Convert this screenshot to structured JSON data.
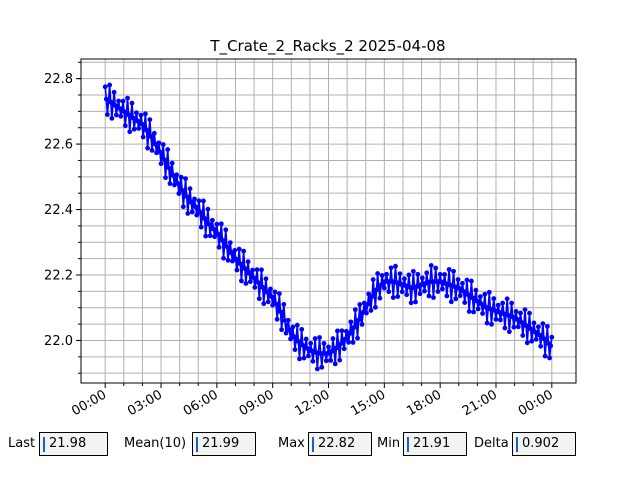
{
  "chart_data": {
    "type": "line",
    "title": "T_Crate_2_Racks_2 2025-04-08",
    "xlabel": "",
    "ylabel": "",
    "x_ticks": [
      "00:00",
      "03:00",
      "06:00",
      "09:00",
      "12:00",
      "15:00",
      "18:00",
      "21:00",
      "00:00"
    ],
    "y_ticks": [
      "22.0",
      "22.2",
      "22.4",
      "22.6",
      "22.8"
    ],
    "xlim_hours": [
      -1.3,
      25.3
    ],
    "ylim": [
      21.87,
      22.86
    ],
    "grid": true,
    "series": [
      {
        "color": "#0000ff",
        "marker": "circle",
        "x_hours": [
          0.0,
          0.5,
          1.0,
          1.5,
          2.0,
          2.5,
          3.0,
          3.5,
          4.0,
          4.5,
          5.0,
          5.5,
          6.0,
          6.5,
          7.0,
          7.5,
          8.0,
          8.5,
          9.0,
          9.5,
          10.0,
          10.5,
          11.0,
          11.5,
          12.0,
          12.5,
          13.0,
          13.5,
          14.0,
          14.5,
          15.0,
          15.5,
          16.0,
          16.5,
          17.0,
          17.5,
          18.0,
          18.5,
          19.0,
          19.5,
          20.0,
          20.5,
          21.0,
          21.5,
          22.0,
          22.5,
          23.0,
          23.5,
          24.0
        ],
        "y_base": [
          22.74,
          22.72,
          22.7,
          22.68,
          22.66,
          22.62,
          22.57,
          22.52,
          22.47,
          22.43,
          22.4,
          22.36,
          22.33,
          22.29,
          22.25,
          22.22,
          22.19,
          22.16,
          22.13,
          22.08,
          22.02,
          21.99,
          21.97,
          21.96,
          21.96,
          21.98,
          22.01,
          22.05,
          22.1,
          22.15,
          22.18,
          22.18,
          22.17,
          22.16,
          22.17,
          22.18,
          22.18,
          22.17,
          22.16,
          22.14,
          22.12,
          22.1,
          22.09,
          22.08,
          22.07,
          22.05,
          22.03,
          22.01,
          21.98
        ],
        "amplitude": 0.05
      }
    ]
  },
  "stats": {
    "last_label": "Last",
    "last_value": "21.98",
    "mean_label": "Mean(10)",
    "mean_value": "21.99",
    "max_label": "Max",
    "max_value": "22.82",
    "min_label": "Min",
    "min_value": "21.91",
    "delta_label": "Delta",
    "delta_value": "0.902"
  }
}
